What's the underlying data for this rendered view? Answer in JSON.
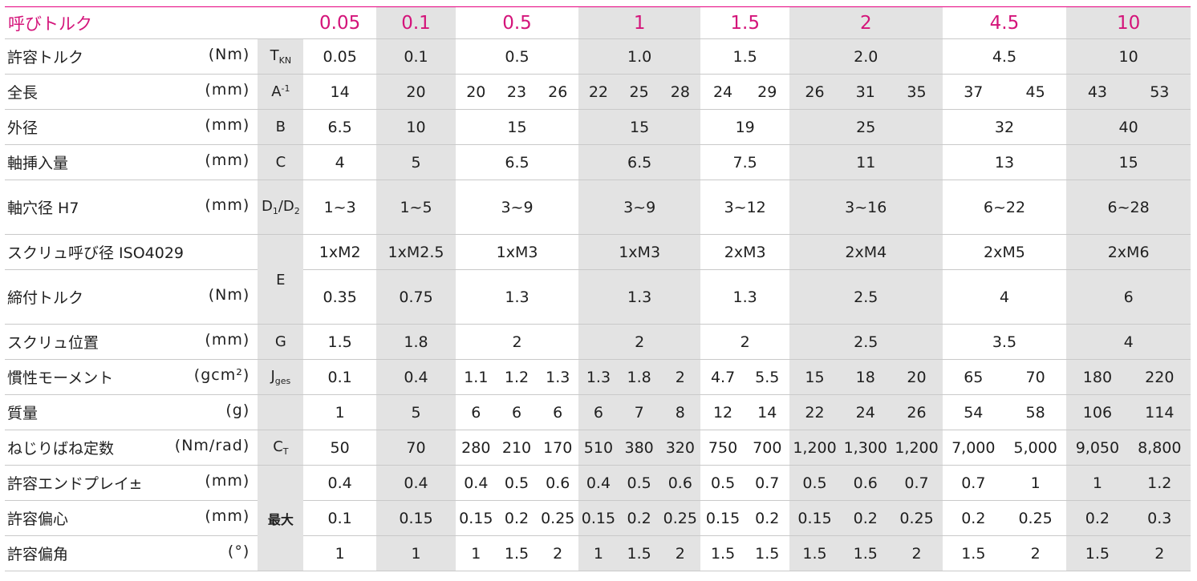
{
  "title": "呼びトルク",
  "sizes": [
    "0.05",
    "0.1",
    "0.5",
    "1",
    "1.5",
    "2",
    "4.5",
    "10"
  ],
  "rows": {
    "allowable_torque": {
      "label": "許容トルク",
      "unit": "(Nm)",
      "sym": "T",
      "sub": "KN",
      "values": [
        "0.05",
        "0.1",
        "0.5",
        "1.0",
        "1.5",
        "2.0",
        "4.5",
        "10"
      ]
    },
    "total_length": {
      "label": "全長",
      "unit": "(mm)",
      "sym": "A",
      "sup": "-1",
      "values": [
        "14",
        "20",
        "20",
        "23",
        "26",
        "22",
        "25",
        "28",
        "24",
        "29",
        "26",
        "31",
        "35",
        "37",
        "45",
        "43",
        "53"
      ]
    },
    "outer_diameter": {
      "label": "外径",
      "unit": "(mm)",
      "sym": "B",
      "values": [
        "6.5",
        "10",
        "15",
        "15",
        "19",
        "25",
        "32",
        "40"
      ]
    },
    "shaft_insertion": {
      "label": "軸挿入量",
      "unit": "(mm)",
      "sym": "C",
      "values": [
        "4",
        "5",
        "6.5",
        "6.5",
        "7.5",
        "11",
        "13",
        "15"
      ]
    },
    "shaft_bore": {
      "label": "軸穴径 H7",
      "unit": "(mm)",
      "sym": "D/D",
      "values": [
        "1~3",
        "1~5",
        "3~9",
        "3~9",
        "3~12",
        "3~16",
        "6~22",
        "6~28"
      ]
    },
    "screw_size": {
      "label": "スクリュ呼び径 ISO4029",
      "sym": "E",
      "values": [
        "1xM2",
        "1xM2.5",
        "1xM3",
        "1xM3",
        "2xM3",
        "2xM4",
        "2xM5",
        "2xM6"
      ]
    },
    "tightening_torque": {
      "label": "締付トルク",
      "unit": "(Nm)",
      "values": [
        "0.35",
        "0.75",
        "1.3",
        "1.3",
        "1.3",
        "2.5",
        "4",
        "6"
      ]
    },
    "screw_position": {
      "label": "スクリュ位置",
      "unit": "(mm)",
      "sym": "G",
      "values": [
        "1.5",
        "1.8",
        "2",
        "2",
        "2",
        "2.5",
        "3.5",
        "4"
      ]
    },
    "inertia": {
      "label": "慣性モーメント",
      "unit": "(gcm²)",
      "sym": "J",
      "sub": "ges",
      "values": [
        "0.1",
        "0.4",
        "1.1",
        "1.2",
        "1.3",
        "1.3",
        "1.8",
        "2",
        "4.7",
        "5.5",
        "15",
        "18",
        "20",
        "65",
        "70",
        "180",
        "220"
      ]
    },
    "mass": {
      "label": "質量",
      "unit": "(g)",
      "values": [
        "1",
        "5",
        "6",
        "6",
        "6",
        "6",
        "7",
        "8",
        "12",
        "14",
        "22",
        "24",
        "26",
        "54",
        "58",
        "106",
        "114"
      ]
    },
    "torsional_stiffness": {
      "label": "ねじりばね定数",
      "unit": "(Nm/rad)",
      "sym": "C",
      "sub": "T",
      "values": [
        "50",
        "70",
        "280",
        "210",
        "170",
        "510",
        "380",
        "320",
        "750",
        "700",
        "1,200",
        "1,300",
        "1,200",
        "7,000",
        "5,000",
        "9,050",
        "8,800"
      ]
    },
    "end_play": {
      "label": "許容エンドプレイ±",
      "unit": "(mm)",
      "values": [
        "0.4",
        "0.4",
        "0.4",
        "0.5",
        "0.6",
        "0.4",
        "0.5",
        "0.6",
        "0.5",
        "0.7",
        "0.5",
        "0.6",
        "0.7",
        "0.7",
        "1",
        "1",
        "1.2"
      ]
    },
    "eccentricity": {
      "label": "許容偏心",
      "unit": "(mm)",
      "sym": "最大",
      "values": [
        "0.1",
        "0.15",
        "0.15",
        "0.2",
        "0.25",
        "0.15",
        "0.2",
        "0.25",
        "0.15",
        "0.2",
        "0.15",
        "0.2",
        "0.25",
        "0.2",
        "0.25",
        "0.2",
        "0.3"
      ]
    },
    "angular": {
      "label": "許容偏角",
      "unit": "(°)",
      "values": [
        "1",
        "1",
        "1",
        "1.5",
        "2",
        "1",
        "1.5",
        "2",
        "1.5",
        "1.5",
        "1.5",
        "1.5",
        "2",
        "1.5",
        "2",
        "1.5",
        "2"
      ]
    }
  }
}
